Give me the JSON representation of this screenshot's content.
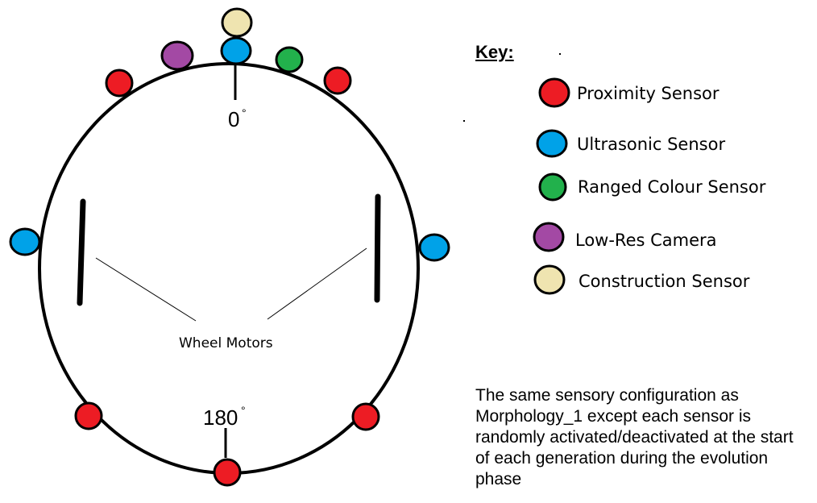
{
  "labels": {
    "angle_top": "0",
    "angle_bottom": "180",
    "wheel_motors": "Wheel Motors"
  },
  "key": {
    "title": "Key:",
    "items": [
      {
        "label": "Proximity Sensor",
        "color": "#ed1c24"
      },
      {
        "label": "Ultrasonic Sensor",
        "color": "#00a2e8"
      },
      {
        "label": "Ranged Colour Sensor",
        "color": "#22b14c"
      },
      {
        "label": "Low-Res Camera",
        "color": "#a349a4"
      },
      {
        "label": "Construction Sensor",
        "color": "#efe4b0"
      }
    ]
  },
  "description": "The same sensory configuration as Morphology_1 except each sensor is randomly activated/deactivated at the start of each generation during the evolution phase",
  "colors": {
    "proximity": "#ed1c24",
    "ultrasonic": "#00a2e8",
    "ranged_colour": "#22b14c",
    "camera": "#a349a4",
    "construction": "#efe4b0",
    "outline": "#000000"
  }
}
